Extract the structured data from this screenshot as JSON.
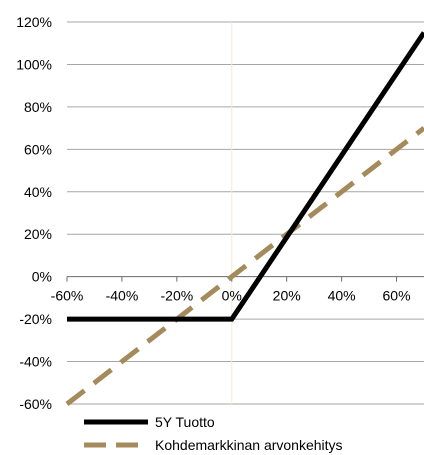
{
  "chart_data": {
    "type": "line",
    "xlim": [
      -60,
      70
    ],
    "ylim": [
      -60,
      120
    ],
    "x_tick_values": [
      -60,
      -40,
      -20,
      0,
      20,
      40,
      60
    ],
    "x_tick_labels": [
      "-60%",
      "-40%",
      "-20%",
      "0%",
      "20%",
      "40%",
      "60%"
    ],
    "y_tick_values": [
      120,
      100,
      80,
      60,
      40,
      20,
      0,
      -20,
      -40,
      -60
    ],
    "y_tick_labels": [
      "120%",
      "100%",
      "80%",
      "60%",
      "40%",
      "20%",
      "0%",
      "-20%",
      "-40%",
      "-60%"
    ],
    "grid": true,
    "legend_position": "bottom-left",
    "series": [
      {
        "name": "5Y Tuotto",
        "style": "solid",
        "color": "#000000",
        "x": [
          -60,
          0,
          70
        ],
        "y": [
          -20,
          -20,
          115
        ]
      },
      {
        "name": "Kohdemarkkinan arvonkehitys",
        "style": "dashed",
        "color": "#a58a5c",
        "x": [
          -60,
          70
        ],
        "y": [
          -60,
          70
        ]
      }
    ]
  }
}
